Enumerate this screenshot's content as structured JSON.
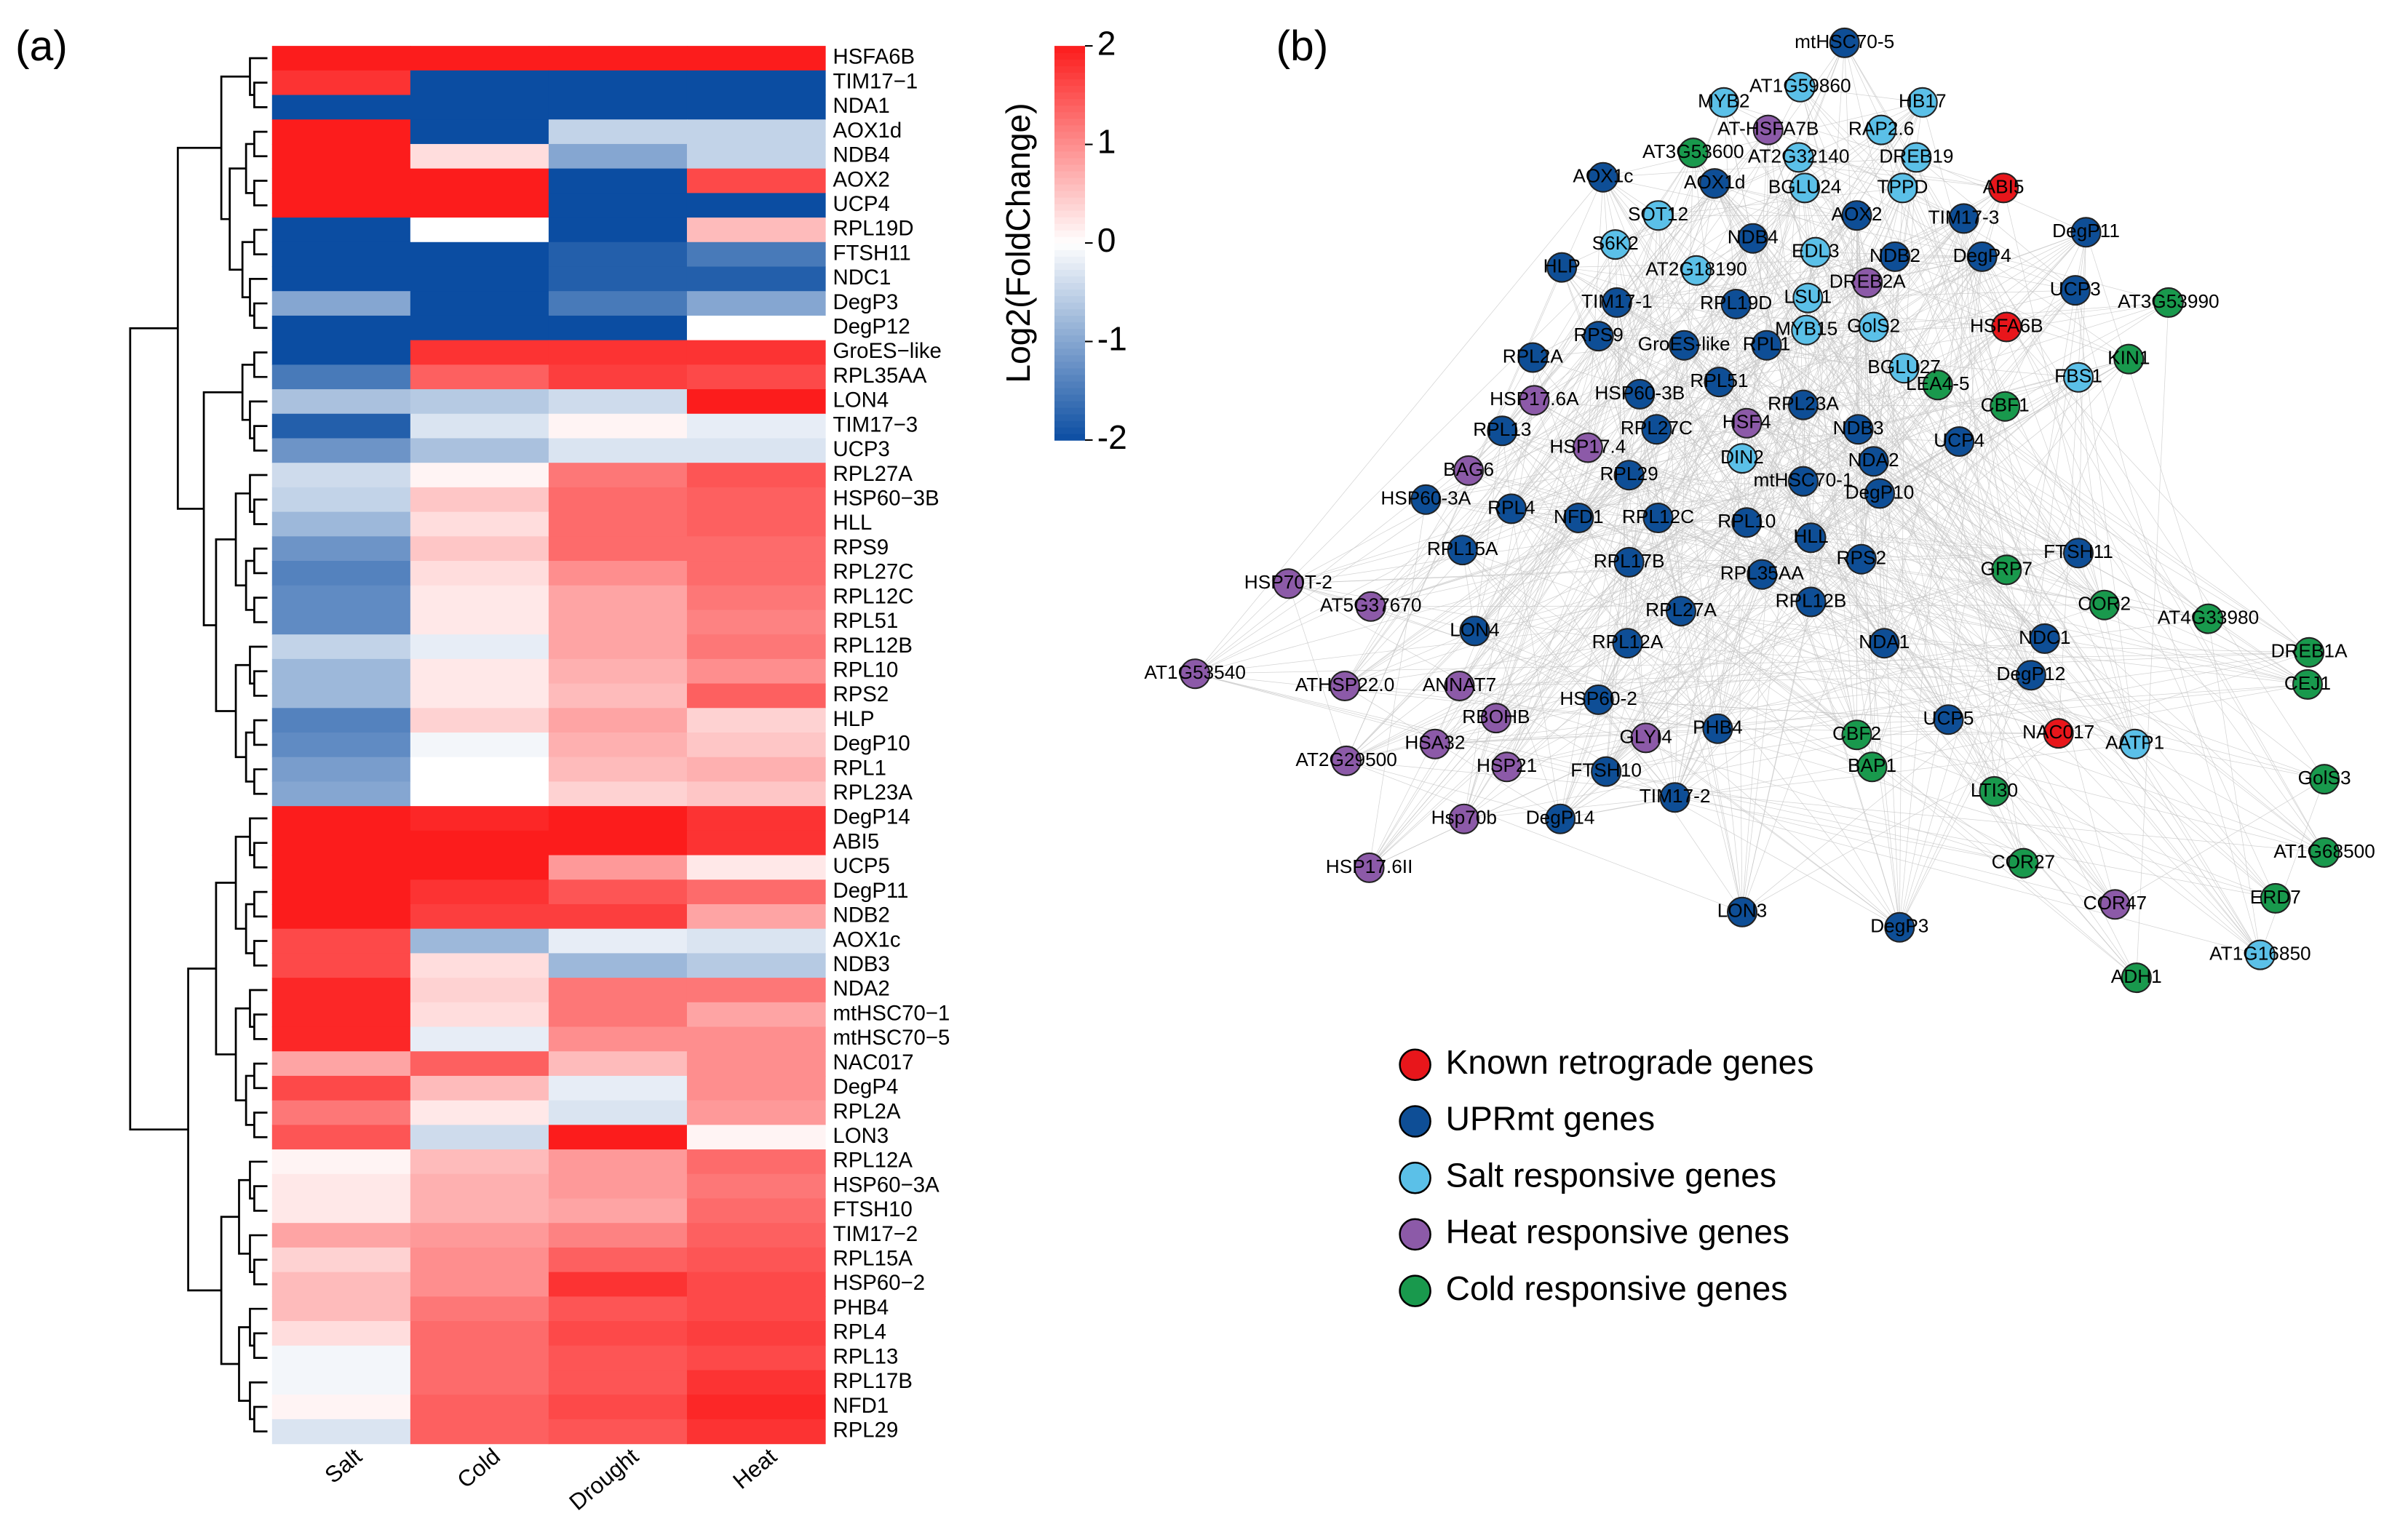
{
  "chart_data": [
    {
      "type": "heatmap",
      "panel_label": "(a)",
      "columns": [
        "Salt",
        "Cold",
        "Drought",
        "Heat"
      ],
      "rows": [
        "HSFA6B",
        "TIM17−1",
        "NDA1",
        "AOX1d",
        "NDB4",
        "AOX2",
        "UCP4",
        "RPL19D",
        "FTSH11",
        "NDC1",
        "DegP3",
        "DegP12",
        "GroES−like",
        "RPL35AA",
        "LON4",
        "TIM17−3",
        "UCP3",
        "RPL27A",
        "HSP60−3B",
        "HLL",
        "RPS9",
        "RPL27C",
        "RPL12C",
        "RPL51",
        "RPL12B",
        "RPL10",
        "RPS2",
        "HLP",
        "DegP10",
        "RPL1",
        "RPL23A",
        "DegP14",
        "ABI5",
        "UCP5",
        "DegP11",
        "NDB2",
        "AOX1c",
        "NDB3",
        "NDA2",
        "mtHSC70−1",
        "mtHSC70−5",
        "NAC017",
        "DegP4",
        "RPL2A",
        "LON3",
        "RPL12A",
        "HSP60−3A",
        "FTSH10",
        "TIM17−2",
        "RPL15A",
        "HSP60−2",
        "PHB4",
        "RPL4",
        "RPL13",
        "RPL17B",
        "NFD1",
        "RPL29"
      ],
      "values": [
        [
          2,
          2,
          2,
          2
        ],
        [
          1.8,
          -2,
          -2,
          -2
        ],
        [
          -2,
          -2,
          -2,
          -2
        ],
        [
          2,
          -2,
          -0.5,
          -0.5
        ],
        [
          2,
          0.3,
          -1,
          -0.5
        ],
        [
          2,
          2,
          -2,
          1.6
        ],
        [
          2,
          2,
          -2,
          -2
        ],
        [
          -2,
          0,
          -2,
          0.6
        ],
        [
          -2,
          -2,
          -1.8,
          -1.5
        ],
        [
          -2,
          -2,
          -1.8,
          -1.8
        ],
        [
          -1,
          -2,
          -1.5,
          -1
        ],
        [
          -2,
          -2,
          -2,
          0
        ],
        [
          -2,
          1.8,
          1.8,
          1.8
        ],
        [
          -1.5,
          1.4,
          1.7,
          1.6
        ],
        [
          -0.7,
          -0.6,
          -0.4,
          2
        ],
        [
          -1.8,
          -0.3,
          0.1,
          -0.2
        ],
        [
          -1.2,
          -0.7,
          -0.3,
          -0.3
        ],
        [
          -0.4,
          0.1,
          1.2,
          1.5
        ],
        [
          -0.5,
          0.5,
          1.3,
          1.4
        ],
        [
          -0.8,
          0.3,
          1.3,
          1.4
        ],
        [
          -1.2,
          0.5,
          1.3,
          1.3
        ],
        [
          -1.4,
          0.3,
          1,
          1.3
        ],
        [
          -1.3,
          0.2,
          0.8,
          1.2
        ],
        [
          -1.3,
          0.2,
          0.8,
          1.1
        ],
        [
          -0.5,
          -0.2,
          0.8,
          1.2
        ],
        [
          -0.8,
          0.2,
          0.7,
          1
        ],
        [
          -0.8,
          0.2,
          0.6,
          1.4
        ],
        [
          -1.4,
          0.4,
          0.8,
          0.4
        ],
        [
          -1.3,
          -0.1,
          0.7,
          0.5
        ],
        [
          -1.1,
          0,
          0.6,
          0.7
        ],
        [
          -1,
          0,
          0.4,
          0.5
        ],
        [
          2,
          1.9,
          2,
          1.8
        ],
        [
          2,
          2,
          2,
          1.8
        ],
        [
          2,
          2,
          0.9,
          0.2
        ],
        [
          2,
          1.8,
          1.5,
          1.3
        ],
        [
          2,
          1.7,
          1.7,
          0.8
        ],
        [
          1.6,
          -0.8,
          -0.2,
          -0.3
        ],
        [
          1.6,
          0.3,
          -0.8,
          -0.6
        ],
        [
          1.9,
          0.4,
          1.2,
          1.2
        ],
        [
          1.9,
          0.3,
          1.2,
          0.8
        ],
        [
          1.9,
          -0.2,
          1,
          1
        ],
        [
          0.8,
          1.4,
          0.6,
          1
        ],
        [
          1.6,
          0.6,
          -0.2,
          1
        ],
        [
          1.2,
          0.2,
          -0.3,
          0.9
        ],
        [
          1.5,
          -0.4,
          2,
          0.1
        ],
        [
          0.1,
          0.6,
          0.9,
          1.3
        ],
        [
          0.2,
          0.7,
          0.9,
          1.2
        ],
        [
          0.2,
          0.7,
          0.8,
          1.3
        ],
        [
          0.8,
          0.9,
          1.1,
          1.4
        ],
        [
          0.4,
          1,
          1.4,
          1.5
        ],
        [
          0.6,
          1,
          1.8,
          1.6
        ],
        [
          0.6,
          1.2,
          1.5,
          1.6
        ],
        [
          0.3,
          1.3,
          1.6,
          1.7
        ],
        [
          -0.1,
          1.3,
          1.5,
          1.6
        ],
        [
          -0.1,
          1.3,
          1.5,
          1.8
        ],
        [
          0.1,
          1.4,
          1.6,
          1.9
        ],
        [
          -0.3,
          1.4,
          1.5,
          1.8
        ]
      ],
      "zlim": [
        -2,
        2
      ],
      "zticks": [
        2,
        1,
        0,
        -1,
        -2
      ],
      "colorbar_label": "Log2(FoldChange)",
      "colorscale": {
        "low": "#0b4da2",
        "mid": "#ffffff",
        "high": "#fc1c1c"
      }
    },
    {
      "type": "network",
      "panel_label": "(b)",
      "groups": [
        {
          "name": "Known retrograde genes",
          "color": "#e8161b"
        },
        {
          "name": "UPRmt genes",
          "color": "#0e4e96"
        },
        {
          "name": "Salt responsive genes",
          "color": "#5bc0e8"
        },
        {
          "name": "Heat responsive genes",
          "color": "#8c5aa8"
        },
        {
          "name": "Cold responsive genes",
          "color": "#19994d"
        }
      ],
      "edge_color": "#c4c4c4",
      "nodes": [
        {
          "label": "mtHSC70-5",
          "group": 1
        },
        {
          "label": "AT1G59860",
          "group": 2
        },
        {
          "label": "MYB2",
          "group": 2
        },
        {
          "label": "HB17",
          "group": 2
        },
        {
          "label": "AT-HSFA7B",
          "group": 3
        },
        {
          "label": "RAP2.6",
          "group": 2
        },
        {
          "label": "AT3G53600",
          "group": 4
        },
        {
          "label": "AT2G32140",
          "group": 2
        },
        {
          "label": "DREB19",
          "group": 2
        },
        {
          "label": "AOX1c",
          "group": 1
        },
        {
          "label": "AOX1d",
          "group": 1
        },
        {
          "label": "BGLU24",
          "group": 2
        },
        {
          "label": "TPPD",
          "group": 2
        },
        {
          "label": "ABI5",
          "group": 0
        },
        {
          "label": "SOT12",
          "group": 2
        },
        {
          "label": "AOX2",
          "group": 1
        },
        {
          "label": "TIM17-3",
          "group": 1
        },
        {
          "label": "NDB4",
          "group": 1
        },
        {
          "label": "DegP11",
          "group": 1
        },
        {
          "label": "S6K2",
          "group": 2
        },
        {
          "label": "EDL3",
          "group": 2
        },
        {
          "label": "NDB2",
          "group": 1
        },
        {
          "label": "DegP4",
          "group": 1
        },
        {
          "label": "HLP",
          "group": 1
        },
        {
          "label": "AT2G18190",
          "group": 2
        },
        {
          "label": "DREB2A",
          "group": 3
        },
        {
          "label": "UCP3",
          "group": 1
        },
        {
          "label": "AT3G53990",
          "group": 4
        },
        {
          "label": "TIM17-1",
          "group": 1
        },
        {
          "label": "LSU1",
          "group": 2
        },
        {
          "label": "RPL19D",
          "group": 1
        },
        {
          "label": "MYB15",
          "group": 2
        },
        {
          "label": "GolS2",
          "group": 2
        },
        {
          "label": "HSFA6B",
          "group": 0
        },
        {
          "label": "RPS9",
          "group": 1
        },
        {
          "label": "GroES-like",
          "group": 1
        },
        {
          "label": "RPL1",
          "group": 1
        },
        {
          "label": "KIN1",
          "group": 4
        },
        {
          "label": "RPL2A",
          "group": 1
        },
        {
          "label": "FBS1",
          "group": 2
        },
        {
          "label": "BGLU27",
          "group": 2
        },
        {
          "label": "LEA4-5",
          "group": 4
        },
        {
          "label": "HSP60-3B",
          "group": 1
        },
        {
          "label": "RPL51",
          "group": 1
        },
        {
          "label": "RPL23A",
          "group": 1
        },
        {
          "label": "HSP17.6A",
          "group": 3
        },
        {
          "label": "CBF1",
          "group": 4
        },
        {
          "label": "RPL13",
          "group": 1
        },
        {
          "label": "RPL27C",
          "group": 1
        },
        {
          "label": "HSF4",
          "group": 3
        },
        {
          "label": "NDB3",
          "group": 1
        },
        {
          "label": "HSP17.4",
          "group": 3
        },
        {
          "label": "UCP4",
          "group": 1
        },
        {
          "label": "RPL29",
          "group": 1
        },
        {
          "label": "DIN2",
          "group": 2
        },
        {
          "label": "NDA2",
          "group": 1
        },
        {
          "label": "BAG6",
          "group": 3
        },
        {
          "label": "mtHSC70-1",
          "group": 1
        },
        {
          "label": "DegP10",
          "group": 1
        },
        {
          "label": "HSP60-3A",
          "group": 1
        },
        {
          "label": "RPL4",
          "group": 1
        },
        {
          "label": "NFD1",
          "group": 1
        },
        {
          "label": "RPL12C",
          "group": 1
        },
        {
          "label": "RPL10",
          "group": 1
        },
        {
          "label": "HLL",
          "group": 1
        },
        {
          "label": "RPS2",
          "group": 1
        },
        {
          "label": "FTSH11",
          "group": 1
        },
        {
          "label": "RPL15A",
          "group": 1
        },
        {
          "label": "GRP7",
          "group": 4
        },
        {
          "label": "RPL17B",
          "group": 1
        },
        {
          "label": "RPL35AA",
          "group": 1
        },
        {
          "label": "HSP70T-2",
          "group": 3
        },
        {
          "label": "AT5G37670",
          "group": 3
        },
        {
          "label": "RPL12B",
          "group": 1
        },
        {
          "label": "RPL27A",
          "group": 1
        },
        {
          "label": "COR2",
          "group": 4
        },
        {
          "label": "AT4G33980",
          "group": 4
        },
        {
          "label": "LON4",
          "group": 1
        },
        {
          "label": "NDC1",
          "group": 1
        },
        {
          "label": "NDA1",
          "group": 1
        },
        {
          "label": "RPL12A",
          "group": 1
        },
        {
          "label": "DREB1A",
          "group": 4
        },
        {
          "label": "DegP12",
          "group": 1
        },
        {
          "label": "AT1G53540",
          "group": 3
        },
        {
          "label": "ATHSP22.0",
          "group": 3
        },
        {
          "label": "ANNAT7",
          "group": 3
        },
        {
          "label": "CEJ1",
          "group": 4
        },
        {
          "label": "HSP60-2",
          "group": 1
        },
        {
          "label": "RBOHB",
          "group": 3
        },
        {
          "label": "UCP5",
          "group": 1
        },
        {
          "label": "NAC017",
          "group": 0
        },
        {
          "label": "PHB4",
          "group": 1
        },
        {
          "label": "GLYI4",
          "group": 3
        },
        {
          "label": "CBF2",
          "group": 4
        },
        {
          "label": "AATP1",
          "group": 2
        },
        {
          "label": "HSA32",
          "group": 3
        },
        {
          "label": "AT2G29500",
          "group": 3
        },
        {
          "label": "HSP21",
          "group": 3
        },
        {
          "label": "BAP1",
          "group": 4
        },
        {
          "label": "GolS3",
          "group": 4
        },
        {
          "label": "FTSH10",
          "group": 1
        },
        {
          "label": "LTI30",
          "group": 4
        },
        {
          "label": "TIM17-2",
          "group": 1
        },
        {
          "label": "Hsp70b",
          "group": 3
        },
        {
          "label": "DegP14",
          "group": 1
        },
        {
          "label": "AT1G68500",
          "group": 4
        },
        {
          "label": "COR27",
          "group": 4
        },
        {
          "label": "HSP17.6II",
          "group": 3
        },
        {
          "label": "ERD7",
          "group": 4
        },
        {
          "label": "COR47",
          "group": 3
        },
        {
          "label": "LON3",
          "group": 1
        },
        {
          "label": "DegP3",
          "group": 1
        },
        {
          "label": "AT1G16850",
          "group": 2
        },
        {
          "label": "ADH1",
          "group": 4
        }
      ]
    }
  ]
}
